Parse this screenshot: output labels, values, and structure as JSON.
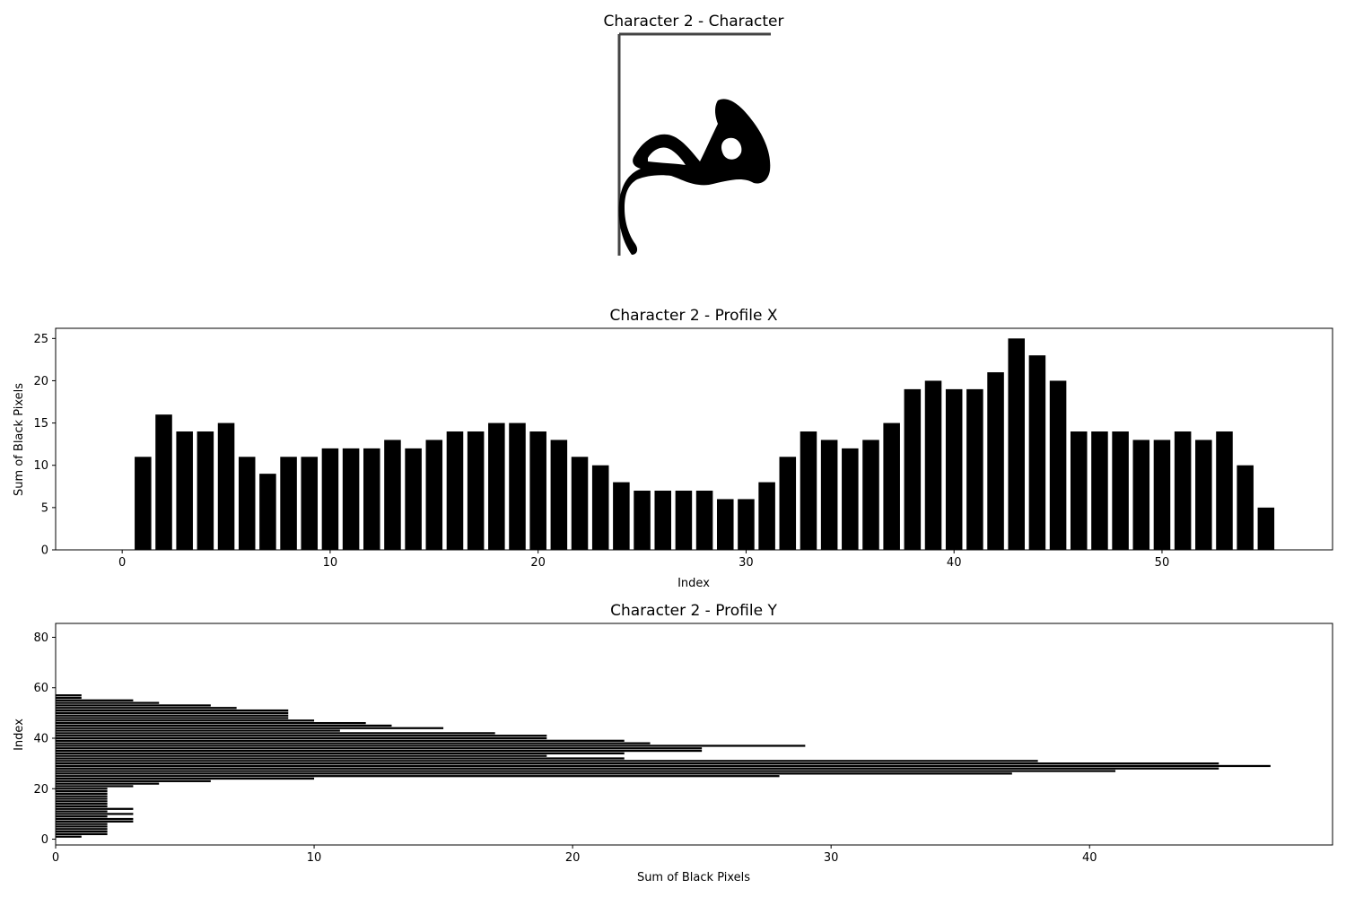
{
  "chart_data": [
    {
      "type": "image",
      "title": "Character 2 - Character"
    },
    {
      "type": "bar",
      "title": "Character 2 - Profile X",
      "xlabel": "Index",
      "ylabel": "Sum of Black Pixels",
      "xlim": [
        -3.2,
        58.2
      ],
      "ylim": [
        0,
        26.2
      ],
      "xticks": [
        0,
        10,
        20,
        30,
        40,
        50
      ],
      "yticks": [
        0,
        5,
        10,
        15,
        20,
        25
      ],
      "grid": false,
      "color": "#000000",
      "x": [
        0,
        1,
        2,
        3,
        4,
        5,
        6,
        7,
        8,
        9,
        10,
        11,
        12,
        13,
        14,
        15,
        16,
        17,
        18,
        19,
        20,
        21,
        22,
        23,
        24,
        25,
        26,
        27,
        28,
        29,
        30,
        31,
        32,
        33,
        34,
        35,
        36,
        37,
        38,
        39,
        40,
        41,
        42,
        43,
        44,
        45,
        46,
        47,
        48,
        49,
        50,
        51,
        52,
        53,
        54,
        55
      ],
      "values": [
        0,
        11,
        16,
        14,
        14,
        15,
        11,
        9,
        11,
        11,
        12,
        12,
        12,
        13,
        12,
        13,
        14,
        14,
        15,
        15,
        14,
        13,
        11,
        10,
        8,
        7,
        7,
        7,
        7,
        6,
        6,
        8,
        11,
        14,
        13,
        12,
        13,
        15,
        19,
        20,
        19,
        19,
        21,
        25,
        23,
        20,
        14,
        14,
        14,
        13,
        13,
        14,
        13,
        14,
        10,
        5
      ]
    },
    {
      "type": "barh",
      "title": "Character 2 - Profile Y",
      "xlabel": "Sum of Black Pixels",
      "ylabel": "Index",
      "xlim": [
        0,
        49.4
      ],
      "ylim": [
        -2.3,
        85.5
      ],
      "xticks": [
        0,
        10,
        20,
        30,
        40
      ],
      "yticks": [
        0,
        20,
        40,
        60,
        80
      ],
      "grid": false,
      "color": "#000000",
      "y": [
        0,
        1,
        2,
        3,
        4,
        5,
        6,
        7,
        8,
        9,
        10,
        11,
        12,
        13,
        14,
        15,
        16,
        17,
        18,
        19,
        20,
        21,
        22,
        23,
        24,
        25,
        26,
        27,
        28,
        29,
        30,
        31,
        32,
        33,
        34,
        35,
        36,
        37,
        38,
        39,
        40,
        41,
        42,
        43,
        44,
        45,
        46,
        47,
        48,
        49,
        50,
        51,
        52,
        53,
        54,
        55,
        56,
        57
      ],
      "values": [
        0,
        1,
        2,
        2,
        2,
        2,
        2,
        3,
        3,
        2,
        3,
        2,
        3,
        2,
        2,
        2,
        2,
        2,
        2,
        2,
        2,
        3,
        4,
        6,
        10,
        28,
        37,
        41,
        45,
        47,
        45,
        38,
        22,
        19,
        22,
        25,
        25,
        29,
        23,
        22,
        19,
        19,
        17,
        11,
        15,
        13,
        12,
        10,
        9,
        9,
        9,
        9,
        7,
        6,
        4,
        3,
        1,
        1
      ]
    }
  ]
}
